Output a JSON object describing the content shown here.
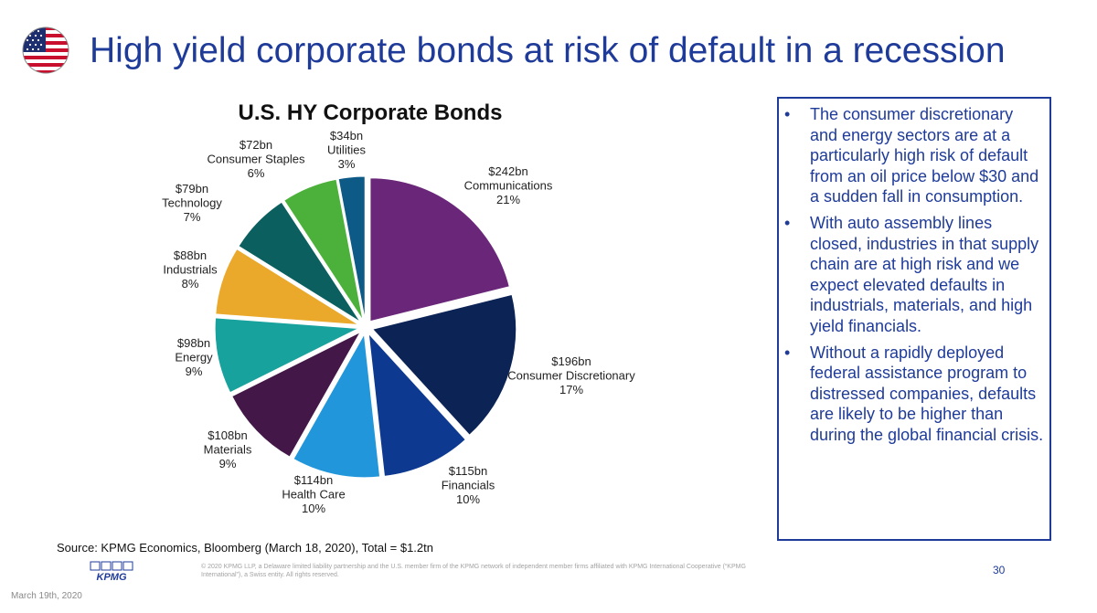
{
  "title": "High yield corporate bonds at risk of default in a recession",
  "chart_data": {
    "type": "pie",
    "title": "U.S. HY Corporate Bonds",
    "slices": [
      {
        "label": "Communications",
        "amount": "$242bn",
        "pct": "21%",
        "value": 242,
        "color": "#6a2679"
      },
      {
        "label": "Consumer Discretionary",
        "amount": "$196bn",
        "pct": "17%",
        "value": 196,
        "color": "#0c2356"
      },
      {
        "label": "Financials",
        "amount": "$115bn",
        "pct": "10%",
        "value": 115,
        "color": "#0d3990"
      },
      {
        "label": "Health Care",
        "amount": "$114bn",
        "pct": "10%",
        "value": 114,
        "color": "#2196da"
      },
      {
        "label": "Materials",
        "amount": "$108bn",
        "pct": "9%",
        "value": 108,
        "color": "#431848"
      },
      {
        "label": "Energy",
        "amount": "$98bn",
        "pct": "9%",
        "value": 98,
        "color": "#17a29e"
      },
      {
        "label": "Industrials",
        "amount": "$88bn",
        "pct": "8%",
        "value": 88,
        "color": "#eaa92a"
      },
      {
        "label": "Technology",
        "amount": "$79bn",
        "pct": "7%",
        "value": 79,
        "color": "#0b605f"
      },
      {
        "label": "Consumer Staples",
        "amount": "$72bn",
        "pct": "6%",
        "value": 72,
        "color": "#4cb13b"
      },
      {
        "label": "Utilities",
        "amount": "$34bn",
        "pct": "3%",
        "value": 34,
        "color": "#0d5a87"
      }
    ]
  },
  "bullets": [
    "The consumer discretionary and energy sectors are at a particularly high risk of default from an oil price below $30 and a sudden fall in consumption.",
    "With auto assembly lines closed, industries in that supply chain are at high risk and we expect elevated defaults in industrials, materials, and high yield financials.",
    "Without a rapidly deployed federal assistance program to distressed companies, defaults are likely to be higher than during the global financial crisis."
  ],
  "bullet_symbol": "•",
  "source": "Source: KPMG Economics, Bloomberg (March 18, 2020), Total = $1.2tn",
  "legal": "© 2020 KPMG LLP, a Delaware limited liability partnership and the U.S. member firm of the KPMG network of independent member firms affiliated with KPMG International Cooperative (“KPMG International”), a Swiss entity. All rights reserved.",
  "logo_text": "KPMG",
  "page_number": "30",
  "date": "March 19th, 2020",
  "colors": {
    "brand_blue": "#1f3b99",
    "flag_red": "#c8102e",
    "flag_blue": "#1d2f6f"
  }
}
